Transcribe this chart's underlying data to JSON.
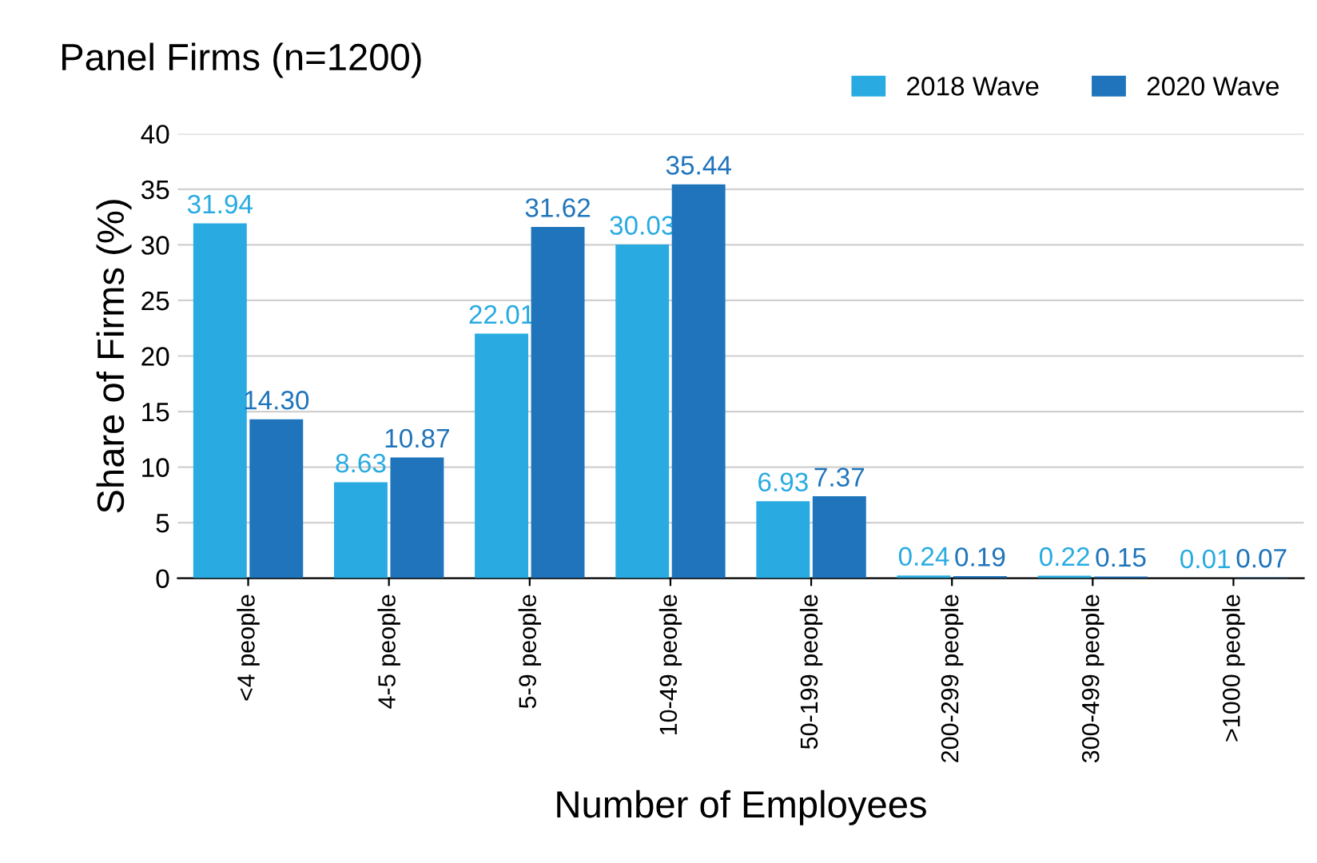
{
  "chart_data": {
    "type": "bar",
    "title": "Panel Firms (n=1200)",
    "xlabel": "Number of Employees",
    "ylabel": "Share of Firms (%)",
    "categories": [
      "<4 people",
      "4-5 people",
      "5-9 people",
      "10-49 people",
      "50-199 people",
      "200-299 people",
      "300-499 people",
      ">1000 people"
    ],
    "series": [
      {
        "name": "2018 Wave",
        "color": "#29abe2",
        "values": [
          31.94,
          8.63,
          22.01,
          30.03,
          6.93,
          0.24,
          0.22,
          0.01
        ],
        "value_labels": [
          "31.94",
          "8.63",
          "22.01",
          "30.03",
          "6.93",
          "0.24",
          "0.22",
          "0.01"
        ]
      },
      {
        "name": "2020 Wave",
        "color": "#1f74bb",
        "values": [
          14.3,
          10.87,
          31.62,
          35.44,
          7.37,
          0.19,
          0.15,
          0.07
        ],
        "value_labels": [
          "14.30",
          "10.87",
          "31.62",
          "35.44",
          "7.37",
          "0.19",
          "0.15",
          "0.07"
        ]
      }
    ],
    "ylim": [
      0,
      40
    ],
    "yticks": [
      0,
      5,
      10,
      15,
      20,
      25,
      30,
      35,
      40
    ],
    "grid": "y",
    "legend": "top right"
  }
}
